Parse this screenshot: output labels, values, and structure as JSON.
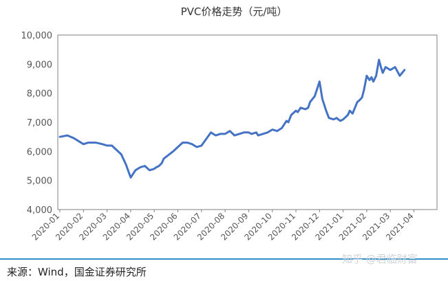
{
  "chart_data": {
    "type": "line",
    "title": "PVC价格走势（元/吨）",
    "xlabel": "",
    "ylabel": "",
    "ylim": [
      4000,
      10000
    ],
    "y_ticks": [
      "4,000",
      "5,000",
      "6,000",
      "7,000",
      "8,000",
      "9,000",
      "10,000"
    ],
    "x_ticks": [
      "2020-01",
      "2020-02",
      "2020-03",
      "2020-04",
      "2020-05",
      "2020-06",
      "2020-07",
      "2020-08",
      "2020-09",
      "2020-10",
      "2020-11",
      "2020-12",
      "2021-01",
      "2021-02",
      "2021-03",
      "2021-04"
    ],
    "x_range": [
      0,
      3.65
    ],
    "grid": false,
    "line_color": "#4472c4",
    "series": [
      {
        "x": [
          0,
          0.08,
          0.15,
          0.25,
          0.3,
          0.38,
          0.45,
          0.5,
          0.55,
          0.65,
          0.7,
          0.75,
          0.8,
          0.85,
          0.9,
          0.95,
          1.0,
          1.02,
          1.05,
          1.08,
          1.1,
          1.2,
          1.3,
          1.35,
          1.4,
          1.45,
          1.5,
          1.6,
          1.65,
          1.7,
          1.75,
          1.8,
          1.85,
          1.9,
          1.95,
          2.0,
          2.03,
          2.08,
          2.1,
          2.15,
          2.2,
          2.25,
          2.3,
          2.35,
          2.4,
          2.42,
          2.45,
          2.5,
          2.52,
          2.55,
          2.6,
          2.63,
          2.65,
          2.7,
          2.75,
          2.78,
          2.82,
          2.85,
          2.9,
          2.93,
          2.97,
          3.0,
          3.05,
          3.07,
          3.1,
          3.15,
          3.17,
          3.2,
          3.22,
          3.25,
          3.28,
          3.3,
          3.32,
          3.35,
          3.38,
          3.4,
          3.42,
          3.45,
          3.5,
          3.55,
          3.6,
          3.65
        ],
        "values": [
          6500,
          6550,
          6450,
          6250,
          6300,
          6300,
          6250,
          6200,
          6200,
          5900,
          5550,
          5100,
          5350,
          5450,
          5500,
          5350,
          5400,
          5450,
          5500,
          5600,
          5750,
          6000,
          6300,
          6300,
          6250,
          6150,
          6200,
          6650,
          6550,
          6600,
          6600,
          6700,
          6550,
          6600,
          6650,
          6650,
          6600,
          6650,
          6550,
          6600,
          6650,
          6750,
          6700,
          6800,
          7050,
          7000,
          7250,
          7400,
          7350,
          7500,
          7450,
          7500,
          7700,
          7900,
          8400,
          7800,
          7400,
          7150,
          7100,
          7150,
          7050,
          7100,
          7250,
          7400,
          7300,
          7700,
          7750,
          7850,
          8100,
          8600,
          8450,
          8550,
          8400,
          8600,
          9150,
          8900,
          8700,
          8900,
          8800,
          8900,
          8600,
          8800
        ]
      }
    ]
  },
  "source": "来源：Wind，国金证券研究所",
  "watermark": "知乎 @君临财富"
}
